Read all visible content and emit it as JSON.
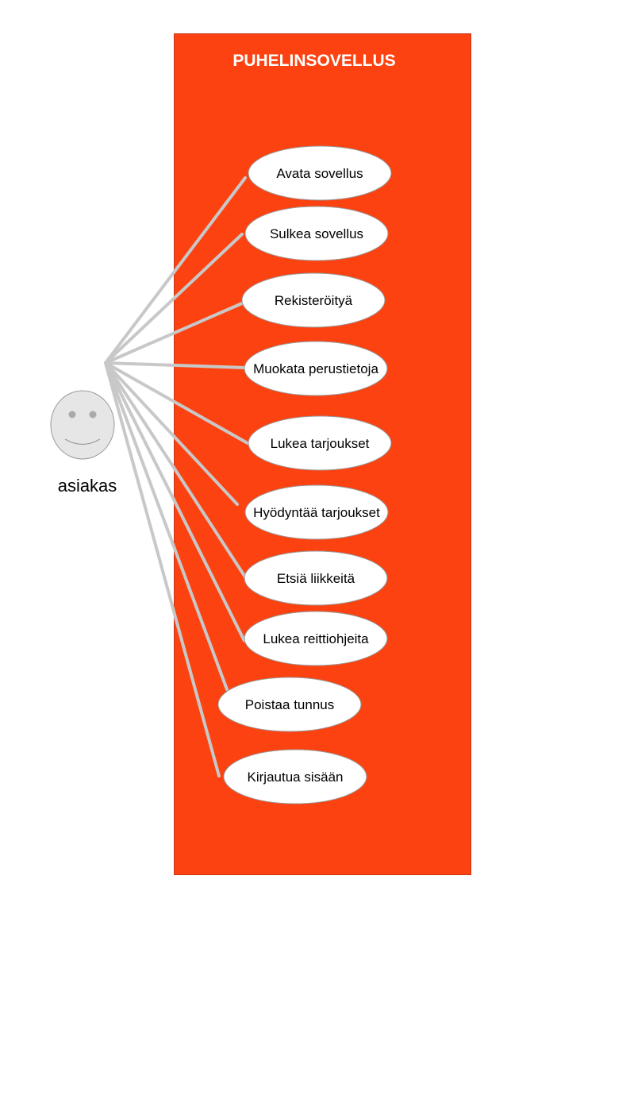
{
  "system": {
    "title": "PUHELINSOVELLUS",
    "fill_color": "#fc4210",
    "border_color": "#c8381a",
    "title_color": "#ffffff"
  },
  "actor": {
    "label": "asiakas",
    "icon": "smiley-face-icon",
    "face_fill": "#e6e6e6",
    "face_stroke": "#999999"
  },
  "association_color": "#c8c8c8",
  "use_case_fill": "#ffffff",
  "use_case_stroke": "#999999",
  "use_cases": [
    {
      "id": "avata-sovellus",
      "label": "Avata sovellus"
    },
    {
      "id": "sulkea-sovellus",
      "label": "Sulkea sovellus"
    },
    {
      "id": "rekisteroitya",
      "label": "Rekisteröityä"
    },
    {
      "id": "muokata-perustietoja",
      "label": "Muokata perustietoja"
    },
    {
      "id": "lukea-tarjoukset",
      "label": "Lukea tarjoukset"
    },
    {
      "id": "hyodyntaa-tarjoukset",
      "label": "Hyödyntää tarjoukset"
    },
    {
      "id": "etsia-liikkeita",
      "label": "Etsiä liikkeitä"
    },
    {
      "id": "lukea-reittiohjeita",
      "label": "Lukea reittiohjeita"
    },
    {
      "id": "poistaa-tunnus",
      "label": "Poistaa tunnus"
    },
    {
      "id": "kirjautua-sisaan",
      "label": "Kirjautua sisään"
    }
  ]
}
